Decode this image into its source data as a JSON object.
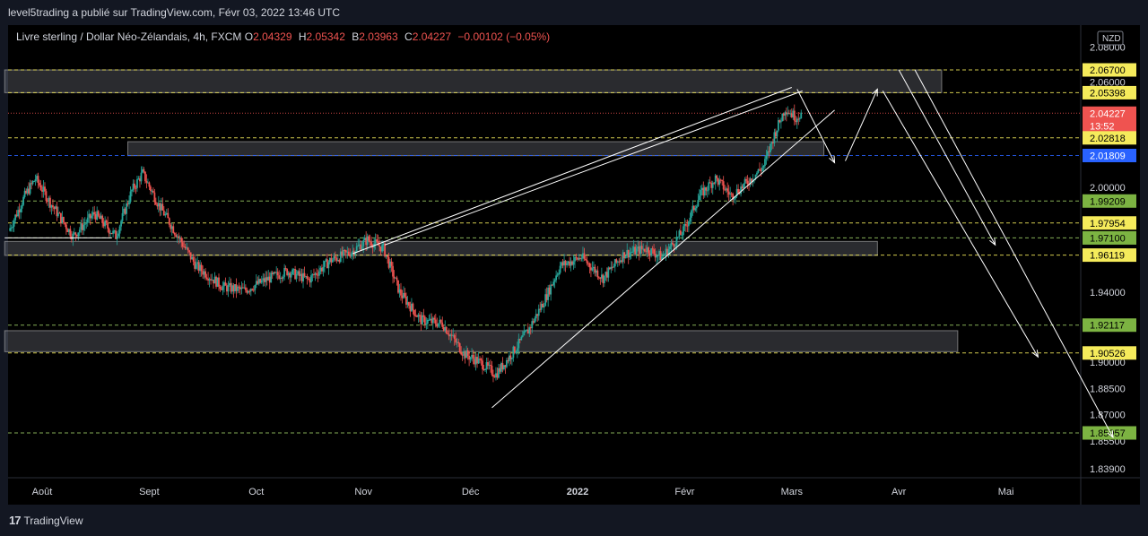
{
  "publisher_line": "level5trading a publié sur TradingView.com, Févr 03, 2022 13:46 UTC",
  "legend": {
    "symbol": "Livre sterling / Dollar Néo-Zélandais, 4h, FXCM",
    "open_label": "O",
    "open": "2.04329",
    "high_label": "H",
    "high": "2.05342",
    "low_label": "B",
    "low": "2.03963",
    "close_label": "C",
    "close": "2.04227",
    "change": "−0.00102 (−0.05%)"
  },
  "brand": {
    "name": "TradingView",
    "icon": "tradingview-logo-icon"
  },
  "chart_data": {
    "type": "candlestick",
    "currency": "NZD",
    "x_labels": [
      "Août",
      "Sept",
      "Oct",
      "Nov",
      "Déc",
      "2022",
      "Févr",
      "Mars",
      "Avr",
      "Mai"
    ],
    "y_ticks": [
      "2.08000",
      "2.06000",
      "2.00000",
      "1.94000",
      "1.90000",
      "1.88500",
      "1.87000",
      "1.85500",
      "1.83900"
    ],
    "price_tags": [
      {
        "label": "2.06700",
        "value": 2.067,
        "style": "yellow"
      },
      {
        "label": "2.05398",
        "value": 2.05398,
        "style": "yellow"
      },
      {
        "label": "2.04227",
        "value": 2.04227,
        "style": "current",
        "sub": "13:52"
      },
      {
        "label": "2.02818",
        "value": 2.02818,
        "style": "yellow"
      },
      {
        "label": "2.01809",
        "value": 2.01809,
        "style": "blue"
      },
      {
        "label": "1.99209",
        "value": 1.99209,
        "style": "green"
      },
      {
        "label": "1.97954",
        "value": 1.97954,
        "style": "yellow"
      },
      {
        "label": "1.97100",
        "value": 1.971,
        "style": "green"
      },
      {
        "label": "1.96119",
        "value": 1.96119,
        "style": "yellow"
      },
      {
        "label": "1.92117",
        "value": 1.92117,
        "style": "green"
      },
      {
        "label": "1.90526",
        "value": 1.90526,
        "style": "yellow"
      },
      {
        "label": "1.85957",
        "value": 1.85957,
        "style": "green"
      }
    ],
    "zones": [
      {
        "from": 2.054,
        "to": 2.067,
        "start_month": -0.35,
        "end_month": 8.4
      },
      {
        "from": 2.018,
        "to": 2.026,
        "start_month": 0.8,
        "end_month": 7.3
      },
      {
        "from": 1.961,
        "to": 1.969,
        "start_month": -0.35,
        "end_month": 7.8
      },
      {
        "from": 1.906,
        "to": 1.918,
        "start_month": -0.35,
        "end_month": 8.55
      }
    ],
    "price_path": [
      {
        "m": -0.3,
        "p": 1.975
      },
      {
        "m": -0.15,
        "p": 1.995
      },
      {
        "m": -0.05,
        "p": 2.005
      },
      {
        "m": 0.1,
        "p": 1.99
      },
      {
        "m": 0.3,
        "p": 1.972
      },
      {
        "m": 0.5,
        "p": 1.985
      },
      {
        "m": 0.7,
        "p": 1.972
      },
      {
        "m": 0.85,
        "p": 1.998
      },
      {
        "m": 0.95,
        "p": 2.008
      },
      {
        "m": 1.1,
        "p": 1.99
      },
      {
        "m": 1.25,
        "p": 1.975
      },
      {
        "m": 1.45,
        "p": 1.955
      },
      {
        "m": 1.7,
        "p": 1.943
      },
      {
        "m": 1.9,
        "p": 1.941
      },
      {
        "m": 2.1,
        "p": 1.947
      },
      {
        "m": 2.3,
        "p": 1.952
      },
      {
        "m": 2.5,
        "p": 1.947
      },
      {
        "m": 2.7,
        "p": 1.958
      },
      {
        "m": 2.9,
        "p": 1.963
      },
      {
        "m": 3.05,
        "p": 1.97
      },
      {
        "m": 3.2,
        "p": 1.965
      },
      {
        "m": 3.35,
        "p": 1.94
      },
      {
        "m": 3.55,
        "p": 1.924
      },
      {
        "m": 3.75,
        "p": 1.922
      },
      {
        "m": 3.95,
        "p": 1.905
      },
      {
        "m": 4.1,
        "p": 1.9
      },
      {
        "m": 4.25,
        "p": 1.893
      },
      {
        "m": 4.4,
        "p": 1.905
      },
      {
        "m": 4.55,
        "p": 1.918
      },
      {
        "m": 4.7,
        "p": 1.935
      },
      {
        "m": 4.85,
        "p": 1.955
      },
      {
        "m": 5.05,
        "p": 1.96
      },
      {
        "m": 5.25,
        "p": 1.948
      },
      {
        "m": 5.45,
        "p": 1.962
      },
      {
        "m": 5.65,
        "p": 1.965
      },
      {
        "m": 5.8,
        "p": 1.96
      },
      {
        "m": 6.0,
        "p": 1.975
      },
      {
        "m": 6.15,
        "p": 1.995
      },
      {
        "m": 6.3,
        "p": 2.005
      },
      {
        "m": 6.45,
        "p": 1.995
      },
      {
        "m": 6.6,
        "p": 2.003
      },
      {
        "m": 6.75,
        "p": 2.012
      },
      {
        "m": 6.85,
        "p": 2.03
      },
      {
        "m": 6.95,
        "p": 2.045
      },
      {
        "m": 7.05,
        "p": 2.04
      },
      {
        "m": 7.1,
        "p": 2.042
      }
    ],
    "trendlines": [
      {
        "m1": -0.35,
        "p1": 1.971,
        "m2": 0.65,
        "p2": 1.971
      },
      {
        "m1": 4.2,
        "p1": 1.874,
        "m2": 7.4,
        "p2": 2.044
      },
      {
        "m1": 3.2,
        "p1": 1.967,
        "m2": 7.1,
        "p2": 2.055
      },
      {
        "m1": 2.9,
        "p1": 1.962,
        "m2": 7.0,
        "p2": 2.057
      }
    ],
    "arrows": [
      {
        "m1": 7.05,
        "p1": 2.056,
        "m2": 7.4,
        "p2": 2.014
      },
      {
        "m1": 7.5,
        "p1": 2.015,
        "m2": 7.8,
        "p2": 2.056
      },
      {
        "m1": 8.0,
        "p1": 2.067,
        "m2": 8.9,
        "p2": 1.967
      },
      {
        "m1": 7.85,
        "p1": 2.055,
        "m2": 9.3,
        "p2": 1.903
      },
      {
        "m1": 8.15,
        "p1": 2.067,
        "m2": 10.0,
        "p2": 1.857
      }
    ]
  }
}
